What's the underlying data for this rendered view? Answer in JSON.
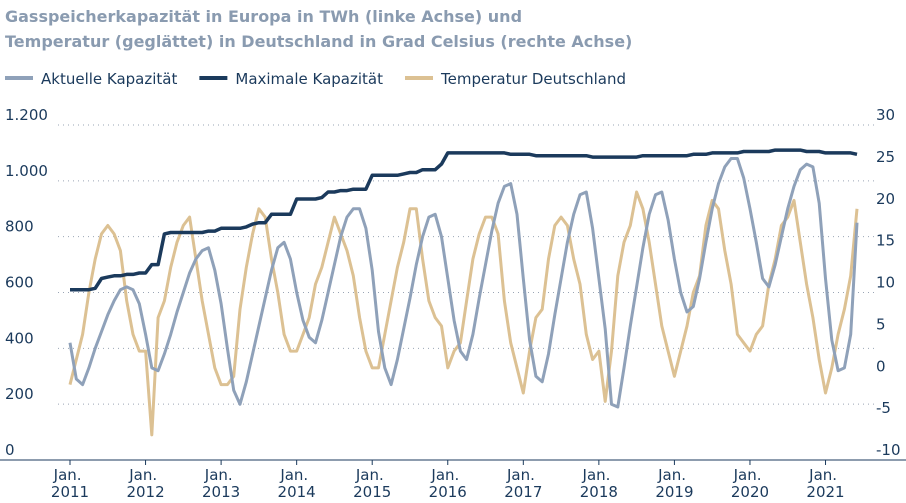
{
  "chart_data": {
    "type": "line",
    "title": [
      "Gasspeicherkapazität in Europa in TWh (linke Achse) und",
      "Temperatur (geglättet) in Deutschland in Grad Celsius (rechte Achse)"
    ],
    "x": [
      "2011-01",
      "2011-02",
      "2011-03",
      "2011-04",
      "2011-05",
      "2011-06",
      "2011-07",
      "2011-08",
      "2011-09",
      "2011-10",
      "2011-11",
      "2011-12",
      "2012-01",
      "2012-02",
      "2012-03",
      "2012-04",
      "2012-05",
      "2012-06",
      "2012-07",
      "2012-08",
      "2012-09",
      "2012-10",
      "2012-11",
      "2012-12",
      "2013-01",
      "2013-02",
      "2013-03",
      "2013-04",
      "2013-05",
      "2013-06",
      "2013-07",
      "2013-08",
      "2013-09",
      "2013-10",
      "2013-11",
      "2013-12",
      "2014-01",
      "2014-02",
      "2014-03",
      "2014-04",
      "2014-05",
      "2014-06",
      "2014-07",
      "2014-08",
      "2014-09",
      "2014-10",
      "2014-11",
      "2014-12",
      "2015-01",
      "2015-02",
      "2015-03",
      "2015-04",
      "2015-05",
      "2015-06",
      "2015-07",
      "2015-08",
      "2015-09",
      "2015-10",
      "2015-11",
      "2015-12",
      "2016-01",
      "2016-02",
      "2016-03",
      "2016-04",
      "2016-05",
      "2016-06",
      "2016-07",
      "2016-08",
      "2016-09",
      "2016-10",
      "2016-11",
      "2016-12",
      "2017-01",
      "2017-02",
      "2017-03",
      "2017-04",
      "2017-05",
      "2017-06",
      "2017-07",
      "2017-08",
      "2017-09",
      "2017-10",
      "2017-11",
      "2017-12",
      "2018-01",
      "2018-02",
      "2018-03",
      "2018-04",
      "2018-05",
      "2018-06",
      "2018-07",
      "2018-08",
      "2018-09",
      "2018-10",
      "2018-11",
      "2018-12",
      "2019-01",
      "2019-02",
      "2019-03",
      "2019-04",
      "2019-05",
      "2019-06",
      "2019-07",
      "2019-08",
      "2019-09",
      "2019-10",
      "2019-11",
      "2019-12",
      "2020-01",
      "2020-02",
      "2020-03",
      "2020-04",
      "2020-05",
      "2020-06",
      "2020-07",
      "2020-08",
      "2020-09",
      "2020-10",
      "2020-11",
      "2020-12",
      "2021-01",
      "2021-02",
      "2021-03",
      "2021-04",
      "2021-05",
      "2021-06"
    ],
    "xlim": [
      "2011-01",
      "2021-06"
    ],
    "xticks": [
      {
        "value": "2011-01",
        "label": "Jan. 2011"
      },
      {
        "value": "2012-01",
        "label": "Jan. 2012"
      },
      {
        "value": "2013-01",
        "label": "Jan. 2013"
      },
      {
        "value": "2014-01",
        "label": "Jan. 2014"
      },
      {
        "value": "2015-01",
        "label": "Jan. 2015"
      },
      {
        "value": "2016-01",
        "label": "Jan. 2016"
      },
      {
        "value": "2017-01",
        "label": "Jan. 2017"
      },
      {
        "value": "2018-01",
        "label": "Jan. 2018"
      },
      {
        "value": "2019-01",
        "label": "Jan. 2019"
      },
      {
        "value": "2020-01",
        "label": "Jan. 2020"
      },
      {
        "value": "2021-01",
        "label": "Jan. 2021"
      }
    ],
    "ylim": [
      0,
      1200
    ],
    "yticks": [
      0,
      200,
      400,
      600,
      800,
      {
        "value": 1000,
        "label": "1.000"
      },
      {
        "value": 1200,
        "label": "1.200"
      }
    ],
    "y2lim": [
      -10,
      30
    ],
    "y2ticks": [
      -10,
      -5,
      0,
      5,
      10,
      15,
      20,
      25,
      30
    ],
    "grid": true,
    "series": [
      {
        "name": "Aktuelle Kapazität",
        "color": "#8fa1b9",
        "values": [
          420,
          290,
          270,
          330,
          400,
          460,
          520,
          570,
          610,
          620,
          610,
          560,
          450,
          330,
          320,
          380,
          450,
          530,
          600,
          670,
          720,
          750,
          760,
          680,
          560,
          400,
          250,
          200,
          280,
          380,
          480,
          580,
          680,
          760,
          780,
          720,
          600,
          500,
          440,
          420,
          500,
          600,
          700,
          800,
          870,
          900,
          900,
          830,
          680,
          460,
          330,
          270,
          360,
          470,
          580,
          700,
          800,
          870,
          880,
          800,
          650,
          500,
          390,
          360,
          450,
          580,
          700,
          820,
          920,
          980,
          990,
          880,
          650,
          430,
          300,
          280,
          380,
          520,
          650,
          780,
          880,
          950,
          960,
          830,
          650,
          470,
          200,
          190,
          330,
          480,
          620,
          760,
          880,
          950,
          960,
          860,
          720,
          600,
          530,
          550,
          650,
          780,
          900,
          990,
          1050,
          1080,
          1080,
          1010,
          900,
          780,
          650,
          620,
          700,
          800,
          900,
          980,
          1040,
          1060,
          1050,
          920,
          650,
          430,
          320,
          330,
          450,
          850
        ]
      },
      {
        "name": "Maximale Kapazität",
        "color": "#1b3a5c",
        "values": [
          610,
          610,
          610,
          610,
          615,
          650,
          655,
          660,
          660,
          665,
          665,
          670,
          670,
          700,
          700,
          810,
          815,
          815,
          815,
          815,
          815,
          815,
          820,
          820,
          830,
          830,
          830,
          830,
          835,
          845,
          850,
          850,
          880,
          880,
          880,
          880,
          935,
          935,
          935,
          935,
          940,
          960,
          960,
          965,
          965,
          970,
          970,
          970,
          1020,
          1020,
          1020,
          1020,
          1020,
          1025,
          1030,
          1030,
          1040,
          1040,
          1040,
          1060,
          1100,
          1100,
          1100,
          1100,
          1100,
          1100,
          1100,
          1100,
          1100,
          1100,
          1095,
          1095,
          1095,
          1095,
          1090,
          1090,
          1090,
          1090,
          1090,
          1090,
          1090,
          1090,
          1090,
          1085,
          1085,
          1085,
          1085,
          1085,
          1085,
          1085,
          1085,
          1090,
          1090,
          1090,
          1090,
          1090,
          1090,
          1090,
          1090,
          1095,
          1095,
          1095,
          1100,
          1100,
          1100,
          1100,
          1100,
          1105,
          1105,
          1105,
          1105,
          1105,
          1110,
          1110,
          1110,
          1110,
          1110,
          1105,
          1105,
          1105,
          1100,
          1100,
          1100,
          1100,
          1100,
          1095
        ]
      },
      {
        "name": "Temperatur Deutschland",
        "color": "#dcc193",
        "axis": "y2",
        "values": [
          -1,
          2,
          5,
          10,
          14,
          17,
          18,
          17,
          15,
          9,
          5,
          3,
          3,
          -7,
          7,
          9,
          13,
          16,
          18,
          19,
          14,
          9,
          5,
          1,
          -1,
          -1,
          0,
          8,
          13,
          17,
          20,
          19,
          14,
          10,
          5,
          3,
          3,
          5,
          7,
          11,
          13,
          16,
          19,
          17,
          15,
          12,
          7,
          3,
          1,
          1,
          5,
          9,
          13,
          16,
          20,
          20,
          14,
          9,
          7,
          6,
          1,
          3,
          4,
          9,
          14,
          17,
          19,
          19,
          17,
          9,
          4,
          1,
          -2,
          3,
          7,
          8,
          14,
          18,
          19,
          18,
          14,
          11,
          5,
          2,
          3,
          -3,
          3,
          12,
          16,
          18,
          22,
          20,
          16,
          11,
          6,
          3,
          0,
          3,
          6,
          10,
          12,
          18,
          21,
          20,
          15,
          11,
          5,
          4,
          3,
          5,
          6,
          11,
          14,
          18,
          19,
          21,
          16,
          11,
          7,
          2,
          -2,
          1,
          5,
          8,
          12,
          20
        ]
      }
    ]
  }
}
